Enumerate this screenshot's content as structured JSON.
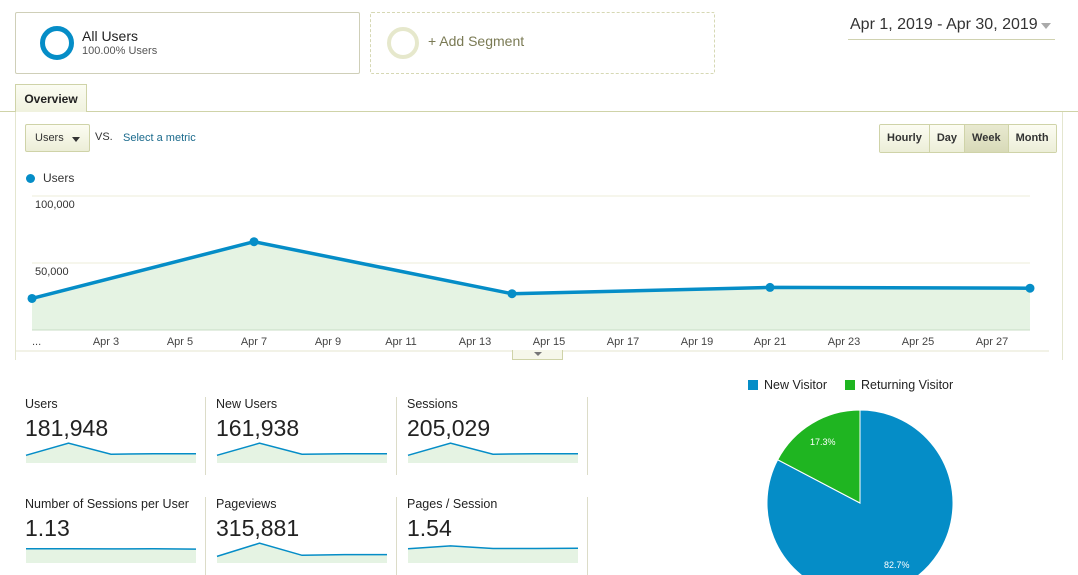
{
  "segments": {
    "all_users": {
      "title": "All Users",
      "subtitle": "100.00% Users"
    },
    "add_segment_label": "+ Add Segment"
  },
  "date_range": "Apr 1, 2019 - Apr 30, 2019",
  "tabs": {
    "overview": "Overview"
  },
  "controls": {
    "metric": "Users",
    "vs": "VS.",
    "select_metric": "Select a metric",
    "time_buttons": [
      "Hourly",
      "Day",
      "Week",
      "Month"
    ],
    "active_time": "Week"
  },
  "chart_data": {
    "type": "area",
    "series": [
      {
        "name": "Users",
        "x": [
          "Apr 1",
          "Apr 7",
          "Apr 14",
          "Apr 21",
          "Apr 28"
        ],
        "values": [
          45000,
          81000,
          48000,
          52000,
          51500
        ]
      }
    ],
    "yticks": [
      "100,000",
      "50,000"
    ],
    "ylim": [
      25000,
      110000
    ],
    "xticks": [
      "...",
      "Apr 3",
      "Apr 5",
      "Apr 7",
      "Apr 9",
      "Apr 11",
      "Apr 13",
      "Apr 15",
      "Apr 17",
      "Apr 19",
      "Apr 21",
      "Apr 23",
      "Apr 25",
      "Apr 27"
    ],
    "colors": {
      "line": "#058dc7",
      "fill": "#e5f3e3",
      "grid": "#ececd8"
    }
  },
  "metrics": [
    {
      "label": "Users",
      "value": "181,948",
      "spark": [
        0.35,
        0.9,
        0.4,
        0.42,
        0.42
      ]
    },
    {
      "label": "New Users",
      "value": "161,938",
      "spark": [
        0.35,
        0.9,
        0.4,
        0.42,
        0.42
      ]
    },
    {
      "label": "Sessions",
      "value": "205,029",
      "spark": [
        0.35,
        0.9,
        0.4,
        0.42,
        0.42
      ]
    },
    {
      "label": "Number of Sessions per User",
      "value": "1.13",
      "spark": [
        0.65,
        0.65,
        0.64,
        0.65,
        0.63
      ]
    },
    {
      "label": "Pageviews",
      "value": "315,881",
      "spark": [
        0.3,
        0.9,
        0.35,
        0.38,
        0.38
      ]
    },
    {
      "label": "Pages / Session",
      "value": "1.54",
      "spark": [
        0.65,
        0.78,
        0.66,
        0.66,
        0.67
      ]
    }
  ],
  "pie_data": {
    "type": "pie",
    "legend": [
      "New Visitor",
      "Returning Visitor"
    ],
    "values": [
      82.7,
      17.3
    ],
    "labels": [
      "82.7%",
      "17.3%"
    ],
    "colors": [
      "#058dc7",
      "#50b432"
    ]
  }
}
